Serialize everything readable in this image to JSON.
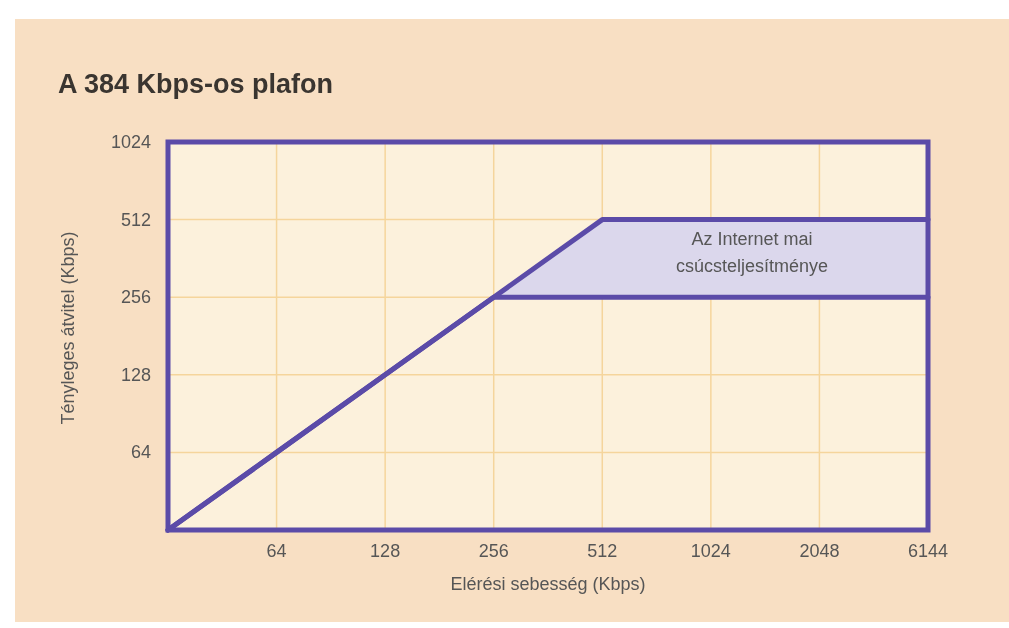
{
  "chart_data": {
    "type": "line",
    "title": "A 384 Kbps-os plafon",
    "xlabel": "Elérési sebesség (Kbps)",
    "ylabel": "Tényleges átvitel (Kbps)",
    "log": "y",
    "categories": [
      null,
      "64",
      "128",
      "256",
      "512",
      "1024",
      "2048",
      "6144"
    ],
    "ylim": [
      32,
      1024
    ],
    "yticks": [
      64,
      128,
      256,
      512,
      1024
    ],
    "grid": true,
    "series": [
      {
        "color": "#5b4ba8",
        "values": [
          32,
          64,
          128,
          256,
          512,
          512,
          512,
          512
        ],
        "lower": [
          32,
          64,
          128,
          256,
          256,
          256,
          256,
          256
        ],
        "upper": [
          32,
          64,
          128,
          256,
          512,
          512,
          512,
          512
        ]
      },
      {
        "color": "#5b4ba8",
        "values": [
          32,
          64,
          128,
          256,
          256,
          256,
          256,
          256
        ]
      }
    ],
    "annotations": [
      "Az Internet mai csúcsteljesítménye"
    ]
  }
}
